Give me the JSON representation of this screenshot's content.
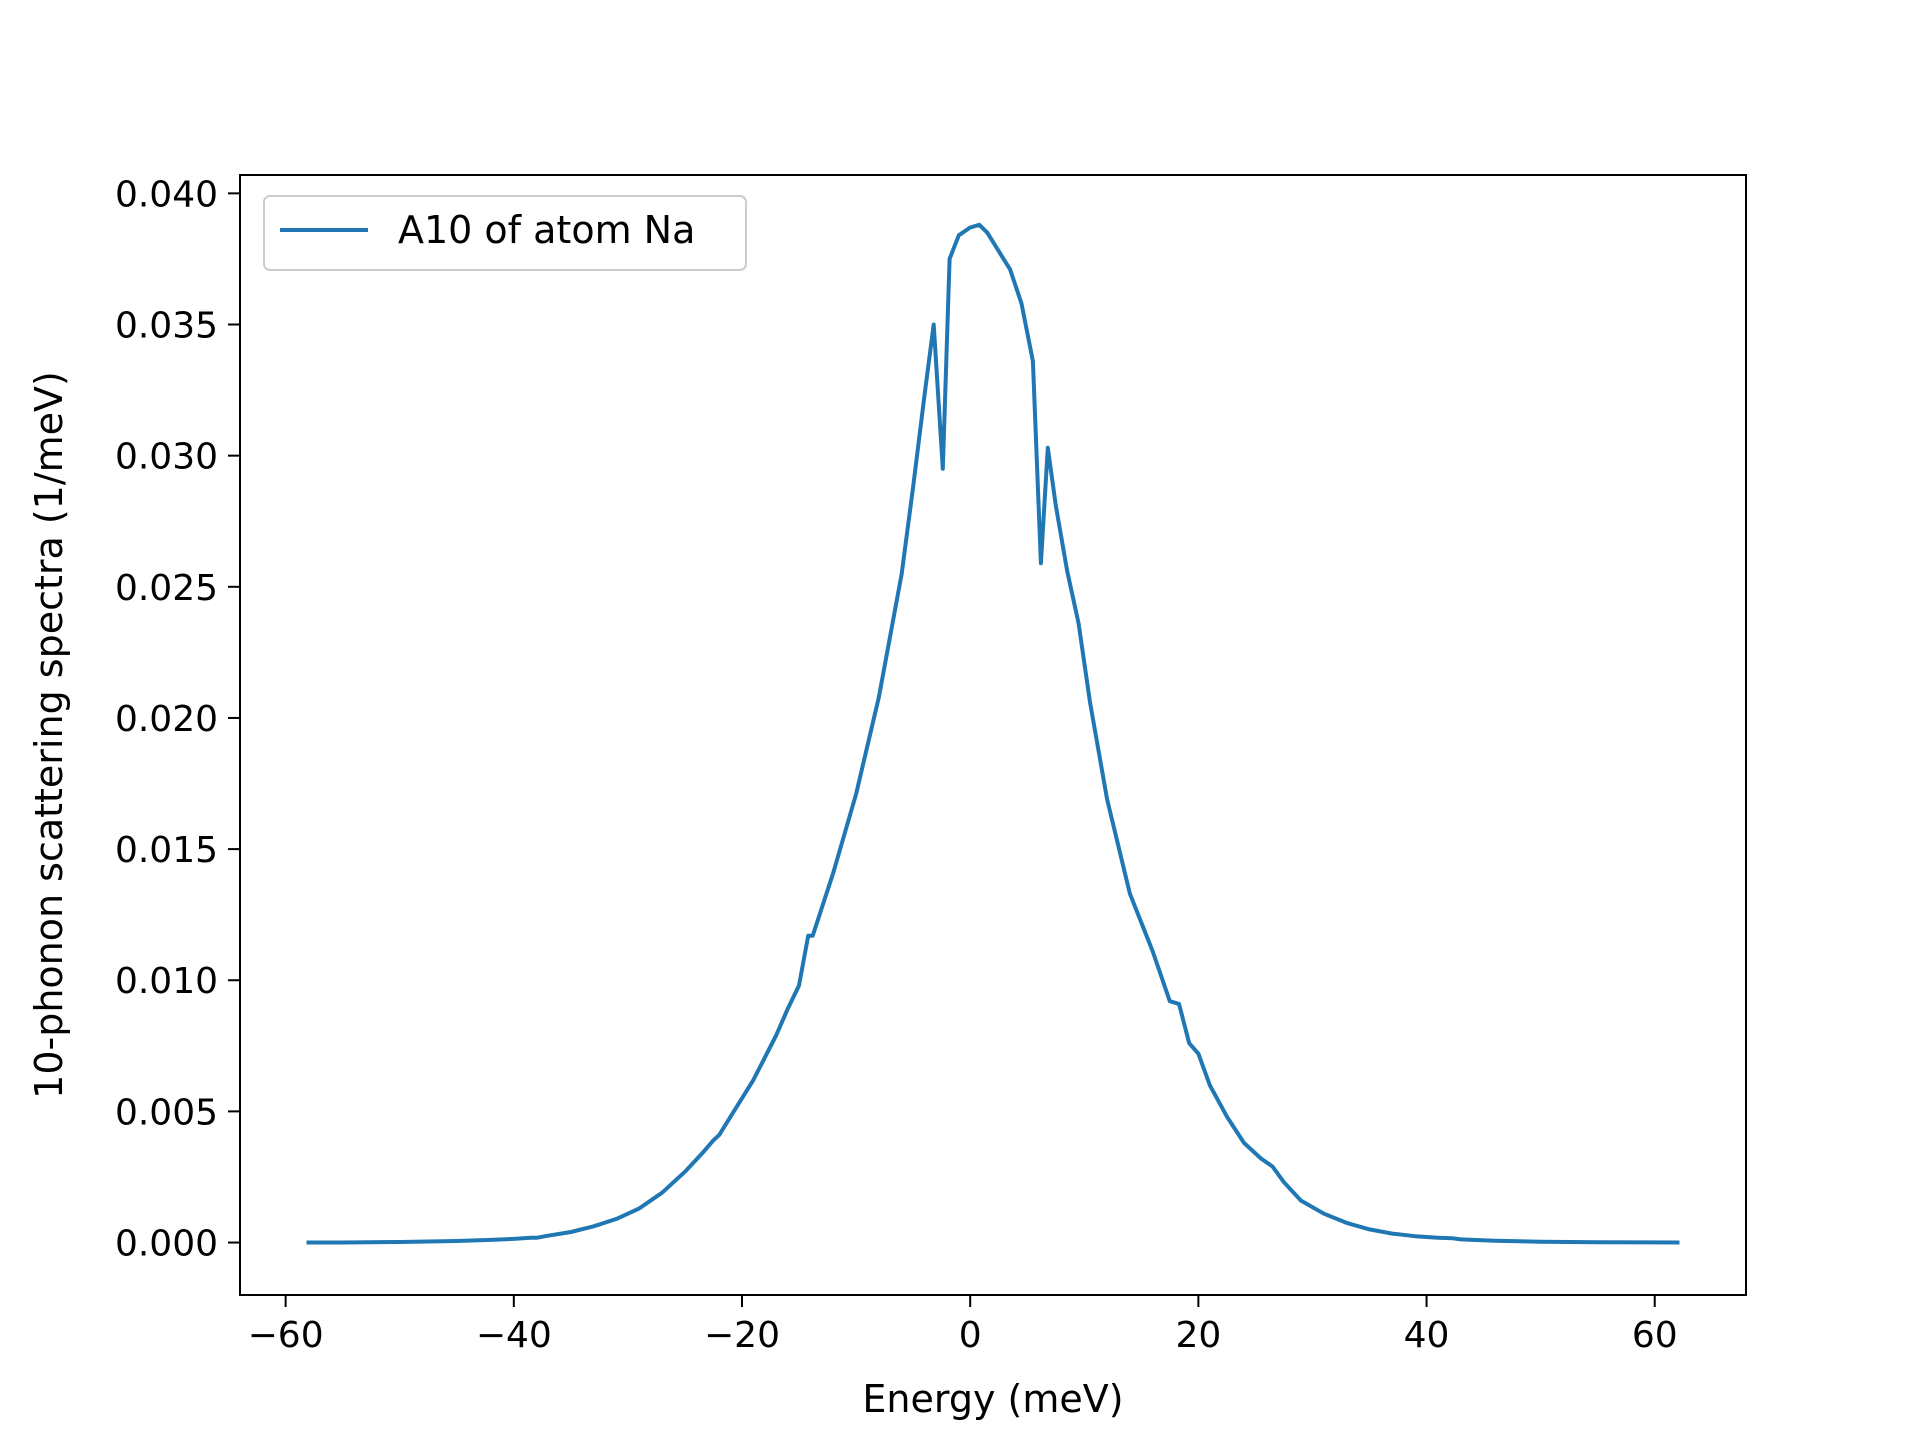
{
  "chart_data": {
    "type": "line",
    "title": "",
    "xlabel": "Energy (meV)",
    "ylabel": "10-phonon scattering spectra (1/meV)",
    "xlim": [
      -64,
      68
    ],
    "ylim": [
      -0.002,
      0.0407
    ],
    "xticks": [
      -60,
      -40,
      -20,
      0,
      20,
      40,
      60
    ],
    "xtick_labels": [
      "−60",
      "−40",
      "−20",
      "0",
      "20",
      "40",
      "60"
    ],
    "yticks": [
      0.0,
      0.005,
      0.01,
      0.015,
      0.02,
      0.025,
      0.03,
      0.035,
      0.04
    ],
    "ytick_labels": [
      "0.000",
      "0.005",
      "0.010",
      "0.015",
      "0.020",
      "0.025",
      "0.030",
      "0.035",
      "0.040"
    ],
    "grid": false,
    "legend_position": "upper left",
    "series": [
      {
        "name": "A10 of atom Na",
        "color": "#1f77b4",
        "x": [
          -58,
          -55,
          -50,
          -45,
          -42,
          -40,
          -38.5,
          -38,
          -37,
          -35,
          -33,
          -31,
          -29,
          -27,
          -25,
          -23.5,
          -22.5,
          -22,
          -21,
          -19,
          -17,
          -16,
          -15,
          -14.2,
          -13.8,
          -12,
          -10,
          -8,
          -6,
          -5,
          -4,
          -3.2,
          -2.4,
          -1.8,
          -1,
          0,
          0.8,
          1.5,
          2.5,
          3.5,
          4.5,
          5.5,
          6.2,
          6.8,
          7.5,
          8.5,
          9.5,
          10.5,
          12,
          14,
          16,
          17.5,
          18.3,
          19.2,
          20,
          21,
          22.5,
          24,
          25.5,
          26.5,
          27.5,
          29,
          31,
          33,
          35,
          37,
          39,
          41,
          42.3,
          43,
          46,
          50,
          55,
          62
        ],
        "y": [
          0.0,
          0.0,
          2e-05,
          6e-05,
          0.0001,
          0.00014,
          0.00018,
          0.00018,
          0.00026,
          0.0004,
          0.00062,
          0.0009,
          0.0013,
          0.0019,
          0.0027,
          0.0034,
          0.0039,
          0.0041,
          0.0048,
          0.0062,
          0.0079,
          0.0089,
          0.0098,
          0.0117,
          0.0117,
          0.0141,
          0.0171,
          0.0208,
          0.0255,
          0.0288,
          0.0323,
          0.035,
          0.0295,
          0.0375,
          0.0384,
          0.0387,
          0.0388,
          0.0385,
          0.0378,
          0.0371,
          0.0358,
          0.0336,
          0.0259,
          0.0303,
          0.0281,
          0.0256,
          0.0236,
          0.0206,
          0.0169,
          0.0133,
          0.0111,
          0.0092,
          0.0091,
          0.0076,
          0.0072,
          0.006,
          0.0048,
          0.0038,
          0.0032,
          0.0029,
          0.0023,
          0.0016,
          0.0011,
          0.00075,
          0.0005,
          0.00034,
          0.00024,
          0.00018,
          0.00016,
          0.00012,
          7e-05,
          3e-05,
          1e-05,
          0.0
        ]
      }
    ]
  }
}
